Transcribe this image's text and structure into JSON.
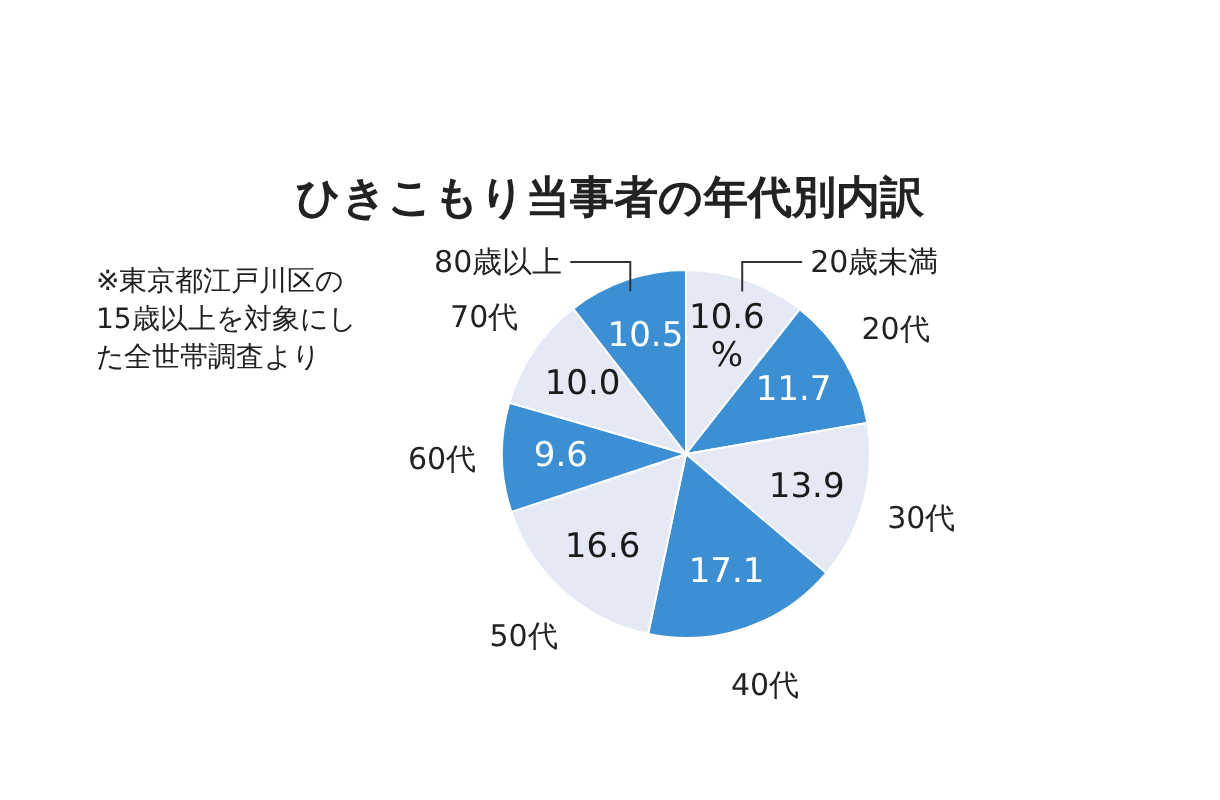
{
  "chart_data": {
    "type": "pie",
    "title": "ひきこもり当事者の年代別内訳",
    "categories": [
      "20歳未満",
      "20代",
      "30代",
      "40代",
      "50代",
      "60代",
      "70代",
      "80歳以上"
    ],
    "values": [
      10.6,
      11.7,
      13.9,
      17.1,
      16.6,
      9.6,
      10.0,
      10.5
    ],
    "value_labels": [
      "10.6%",
      "11.7",
      "13.9",
      "17.1",
      "16.6",
      "9.6",
      "10.0",
      "10.5"
    ],
    "colors": [
      "#e4e9f5",
      "#3b8fd2",
      "#e4e9f5",
      "#3b8fd2",
      "#e4e9f5",
      "#3b8fd2",
      "#e4e9f5",
      "#3b8fd2"
    ],
    "annotations": [
      "※東京都江戸川区の15歳以上を対象にした全世帯調査より"
    ]
  }
}
